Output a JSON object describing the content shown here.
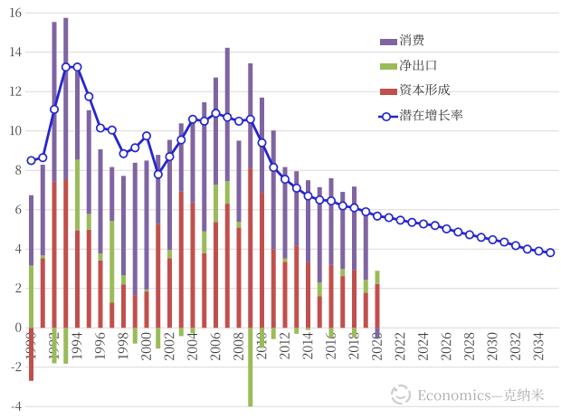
{
  "chart_data": {
    "type": "bar",
    "subtype": "stacked-bar-with-line-overlay",
    "x": [
      1990,
      1991,
      1992,
      1993,
      1994,
      1995,
      1996,
      1997,
      1998,
      1999,
      2000,
      2001,
      2002,
      2003,
      2004,
      2005,
      2006,
      2007,
      2008,
      2009,
      2010,
      2011,
      2012,
      2013,
      2014,
      2015,
      2016,
      2017,
      2018,
      2019,
      2020,
      2021,
      2022,
      2023,
      2024,
      2025,
      2026,
      2027,
      2028,
      2029,
      2030,
      2031,
      2032,
      2033,
      2034,
      2035
    ],
    "x_tick_labels": [
      "1990",
      "1992",
      "1994",
      "1996",
      "1998",
      "2000",
      "2002",
      "2004",
      "2006",
      "2008",
      "2010",
      "2012",
      "2014",
      "2016",
      "2018",
      "2020",
      "2022",
      "2024",
      "2026",
      "2028",
      "2030",
      "2032",
      "2034"
    ],
    "y_tick_labels": [
      "-4",
      "-2",
      "0",
      "2",
      "4",
      "6",
      "8",
      "10",
      "12",
      "14",
      "16"
    ],
    "ylim": [
      -4,
      16
    ],
    "ytick_step": 2,
    "grid": true,
    "legend_position": "upper-right-inside",
    "stack_order_bottom_to_top": [
      "资本形成",
      "净出口",
      "消费"
    ],
    "bar_series": [
      {
        "name": "消费",
        "color": "#8064A2",
        "values": [
          3.57,
          4.61,
          8.11,
          8.22,
          4.48,
          5.27,
          5.29,
          2.74,
          5.04,
          6.73,
          6.55,
          3.5,
          5.59,
          3.47,
          4.28,
          6.56,
          5.45,
          6.77,
          4.12,
          5.34,
          4.84,
          6.03,
          4.64,
          3.77,
          4.16,
          4.85,
          4.4,
          3.92,
          4.24,
          3.31,
          -0.53
        ]
      },
      {
        "name": "净出口",
        "color": "#9BBB59",
        "values": [
          3.17,
          0.15,
          -1.8,
          -1.82,
          3.6,
          0.8,
          0.36,
          4.15,
          0.47,
          -0.8,
          0.1,
          -1.05,
          0.42,
          -0.42,
          -0.27,
          1.11,
          1.89,
          1.15,
          0.3,
          -4.0,
          -1.02,
          -0.57,
          0.17,
          -0.3,
          -0.11,
          0.7,
          -0.52,
          0.36,
          -0.49,
          0.67,
          0.67
        ]
      },
      {
        "name": "资本形成",
        "color": "#C0504D",
        "values": [
          -2.69,
          3.53,
          7.43,
          7.53,
          4.95,
          4.99,
          3.42,
          1.28,
          2.21,
          1.66,
          1.85,
          5.29,
          3.54,
          6.92,
          6.37,
          3.79,
          5.38,
          6.31,
          5.09,
          8.1,
          6.86,
          4.0,
          3.36,
          4.19,
          3.34,
          1.6,
          3.2,
          2.63,
          2.94,
          1.78,
          2.23
        ]
      }
    ],
    "line_series": {
      "name": "潜在增长率",
      "color": "#2626CE",
      "marker": "open-circle",
      "values": [
        8.5,
        8.65,
        11.1,
        13.25,
        13.25,
        11.75,
        10.15,
        10.05,
        8.85,
        9.15,
        9.75,
        7.8,
        8.7,
        9.55,
        10.6,
        10.5,
        10.9,
        10.7,
        10.5,
        10.6,
        9.4,
        8.15,
        7.55,
        7.1,
        6.7,
        6.5,
        6.45,
        6.2,
        6.1,
        5.9,
        5.68,
        5.6,
        5.47,
        5.36,
        5.28,
        5.2,
        5.03,
        4.87,
        4.73,
        4.6,
        4.48,
        4.36,
        4.18,
        4.0,
        3.9,
        3.82
      ]
    }
  },
  "watermark": {
    "text": "Economics—克纳米"
  }
}
